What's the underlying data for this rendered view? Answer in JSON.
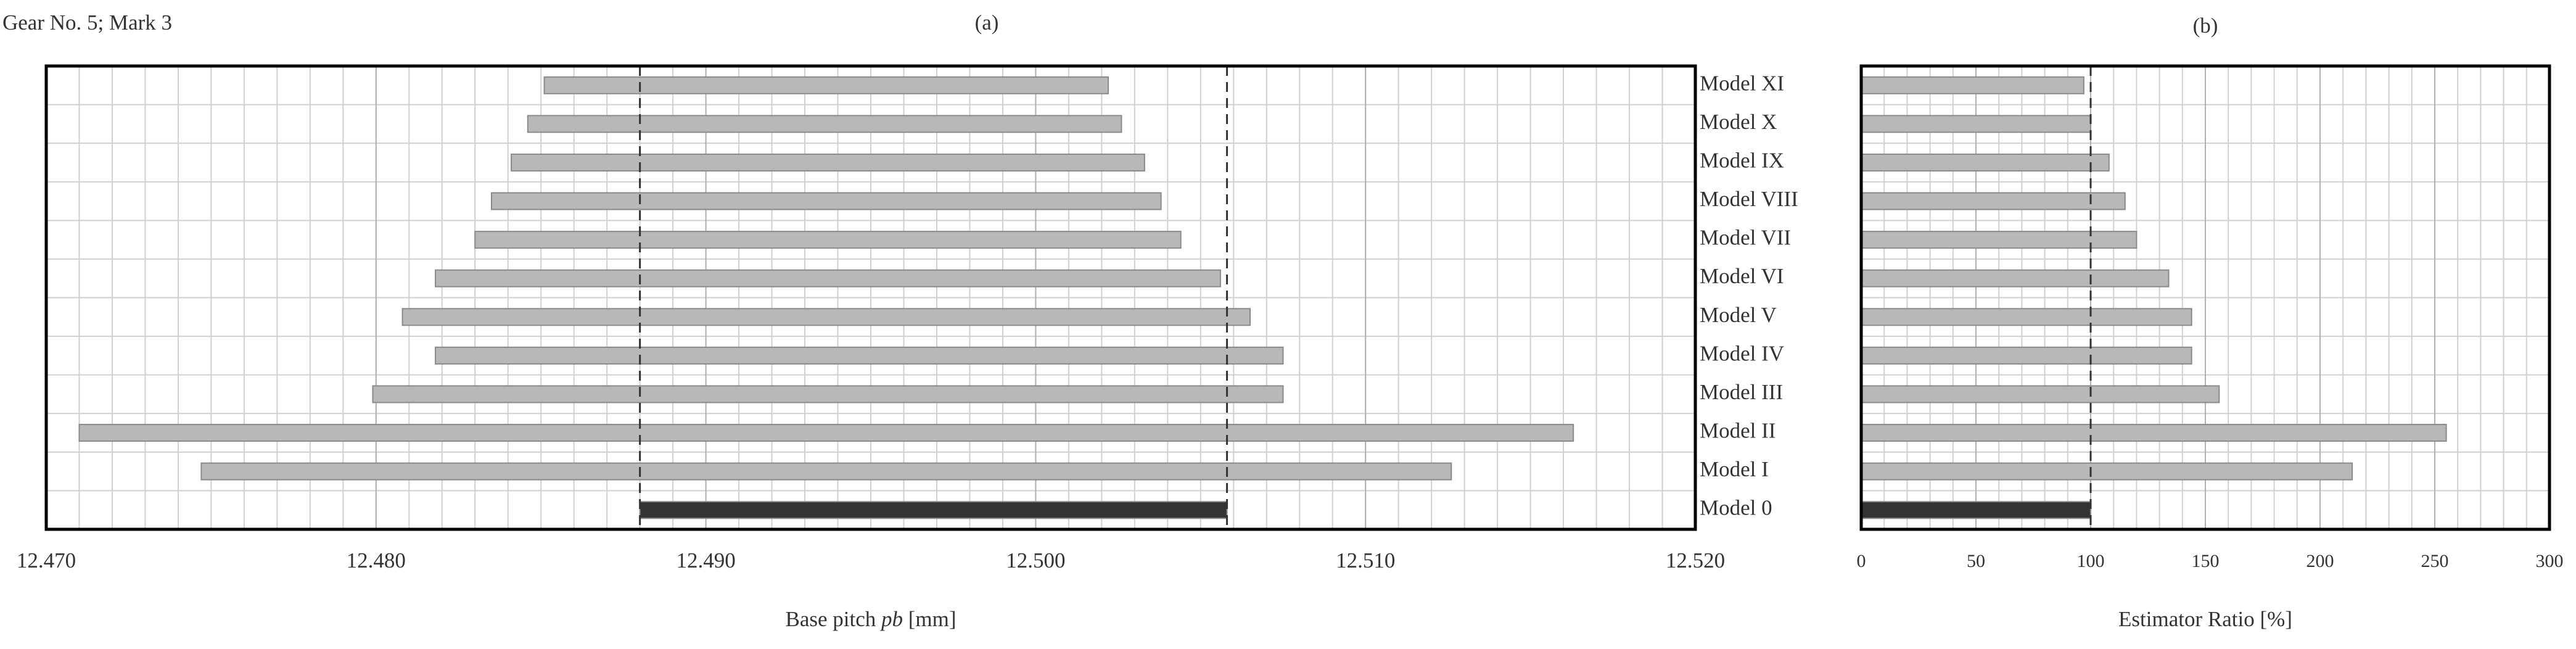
{
  "chart_data": [
    {
      "type": "range_bar",
      "title": "(a)",
      "corner_note": "Gear No. 5; Mark 3",
      "x_label": [
        "Base pitch ",
        "pb",
        " [mm]"
      ],
      "categories": [
        "Model XI",
        "Model X",
        "Model IX",
        "Model VIII",
        "Model VII",
        "Model VI",
        "Model V",
        "Model IV",
        "Model III",
        "Model II",
        "Model I",
        "Model 0"
      ],
      "low": [
        12.4851,
        12.4846,
        12.4841,
        12.4835,
        12.483,
        12.4818,
        12.4808,
        12.4818,
        12.4799,
        12.471,
        12.4747,
        12.488
      ],
      "high": [
        12.5022,
        12.5026,
        12.5033,
        12.5038,
        12.5044,
        12.5056,
        12.5065,
        12.5075,
        12.5075,
        12.5163,
        12.5126,
        12.5058
      ],
      "colors": [
        "#b8b8b8",
        "#b8b8b8",
        "#b8b8b8",
        "#b8b8b8",
        "#b8b8b8",
        "#b8b8b8",
        "#b8b8b8",
        "#b8b8b8",
        "#b8b8b8",
        "#b8b8b8",
        "#b8b8b8",
        "#333333"
      ],
      "xlim": [
        12.47,
        12.52
      ],
      "xticks": [
        {
          "value": 12.47,
          "label": "12.470"
        },
        {
          "value": 12.48,
          "label": "12.480"
        },
        {
          "value": 12.49,
          "label": "12.490"
        },
        {
          "value": 12.5,
          "label": "12.500"
        },
        {
          "value": 12.51,
          "label": "12.510"
        },
        {
          "value": 12.52,
          "label": "12.520"
        }
      ],
      "grid": {
        "minor_step": 0.001
      }
    },
    {
      "type": "bar_h",
      "title": "(b)",
      "x_label": "Estimator Ratio [%]",
      "values": [
        97,
        100,
        108,
        115,
        120,
        134,
        144,
        144,
        156,
        255,
        214,
        100
      ],
      "colors": [
        "#b8b8b8",
        "#b8b8b8",
        "#b8b8b8",
        "#b8b8b8",
        "#b8b8b8",
        "#b8b8b8",
        "#b8b8b8",
        "#b8b8b8",
        "#b8b8b8",
        "#b8b8b8",
        "#b8b8b8",
        "#333333"
      ],
      "xlim": [
        0,
        300
      ],
      "xticks": [
        0,
        50,
        100,
        150,
        200,
        250,
        300
      ],
      "grid": {
        "minor_step": 10
      }
    }
  ]
}
